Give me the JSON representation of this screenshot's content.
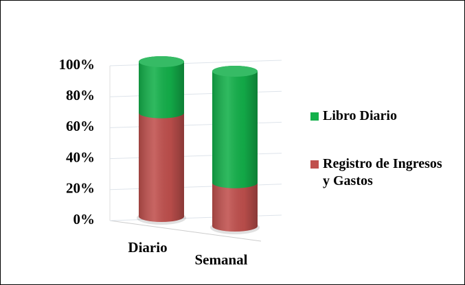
{
  "chart_data": {
    "type": "stacked-cylinder-percent",
    "categories": [
      "Diario",
      "Semanal"
    ],
    "series": [
      {
        "name": "Registro de Ingresos y Gastos",
        "color": "#c0504d",
        "values": [
          67,
          28
        ]
      },
      {
        "name": "Libro Diario",
        "color": "#13b04a",
        "values": [
          33,
          72
        ]
      }
    ],
    "ylim": [
      0,
      100
    ],
    "yticks": [
      {
        "value": 0,
        "label": "0%"
      },
      {
        "value": 20,
        "label": "20%"
      },
      {
        "value": 40,
        "label": "40%"
      },
      {
        "value": 60,
        "label": "60%"
      },
      {
        "value": 80,
        "label": "80%"
      },
      {
        "value": 100,
        "label": "100%"
      }
    ],
    "grid": true,
    "legend": "right"
  }
}
